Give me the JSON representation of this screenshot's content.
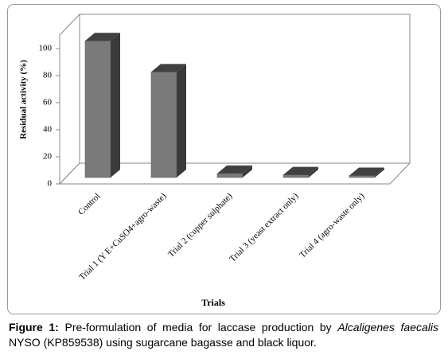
{
  "chart_data": {
    "type": "bar3d",
    "categories": [
      "Control",
      "Trial 1 (Y E+CuSO4+agro-waste)",
      "Trial 2 (cupper sulphate)",
      "Trial 3 (yeast extract only)",
      "Trial 4 (agro-waste only)"
    ],
    "values": [
      101,
      78,
      3,
      2,
      1.5
    ],
    "color": "#7a7a7a",
    "ylim": [
      0,
      110
    ],
    "yticks": [
      0,
      20,
      40,
      60,
      80,
      100
    ],
    "grid": false,
    "ylabel": "Residual activity (%)",
    "xlabel": "Trials"
  },
  "caption": {
    "label": "Figure 1:",
    "text1": "Pre-formulation of media for laccase production by",
    "italic": "Alcaligenes faecalis",
    "text2": "NYSO (KP859538) using sugarcane bagasse and black liquor."
  }
}
